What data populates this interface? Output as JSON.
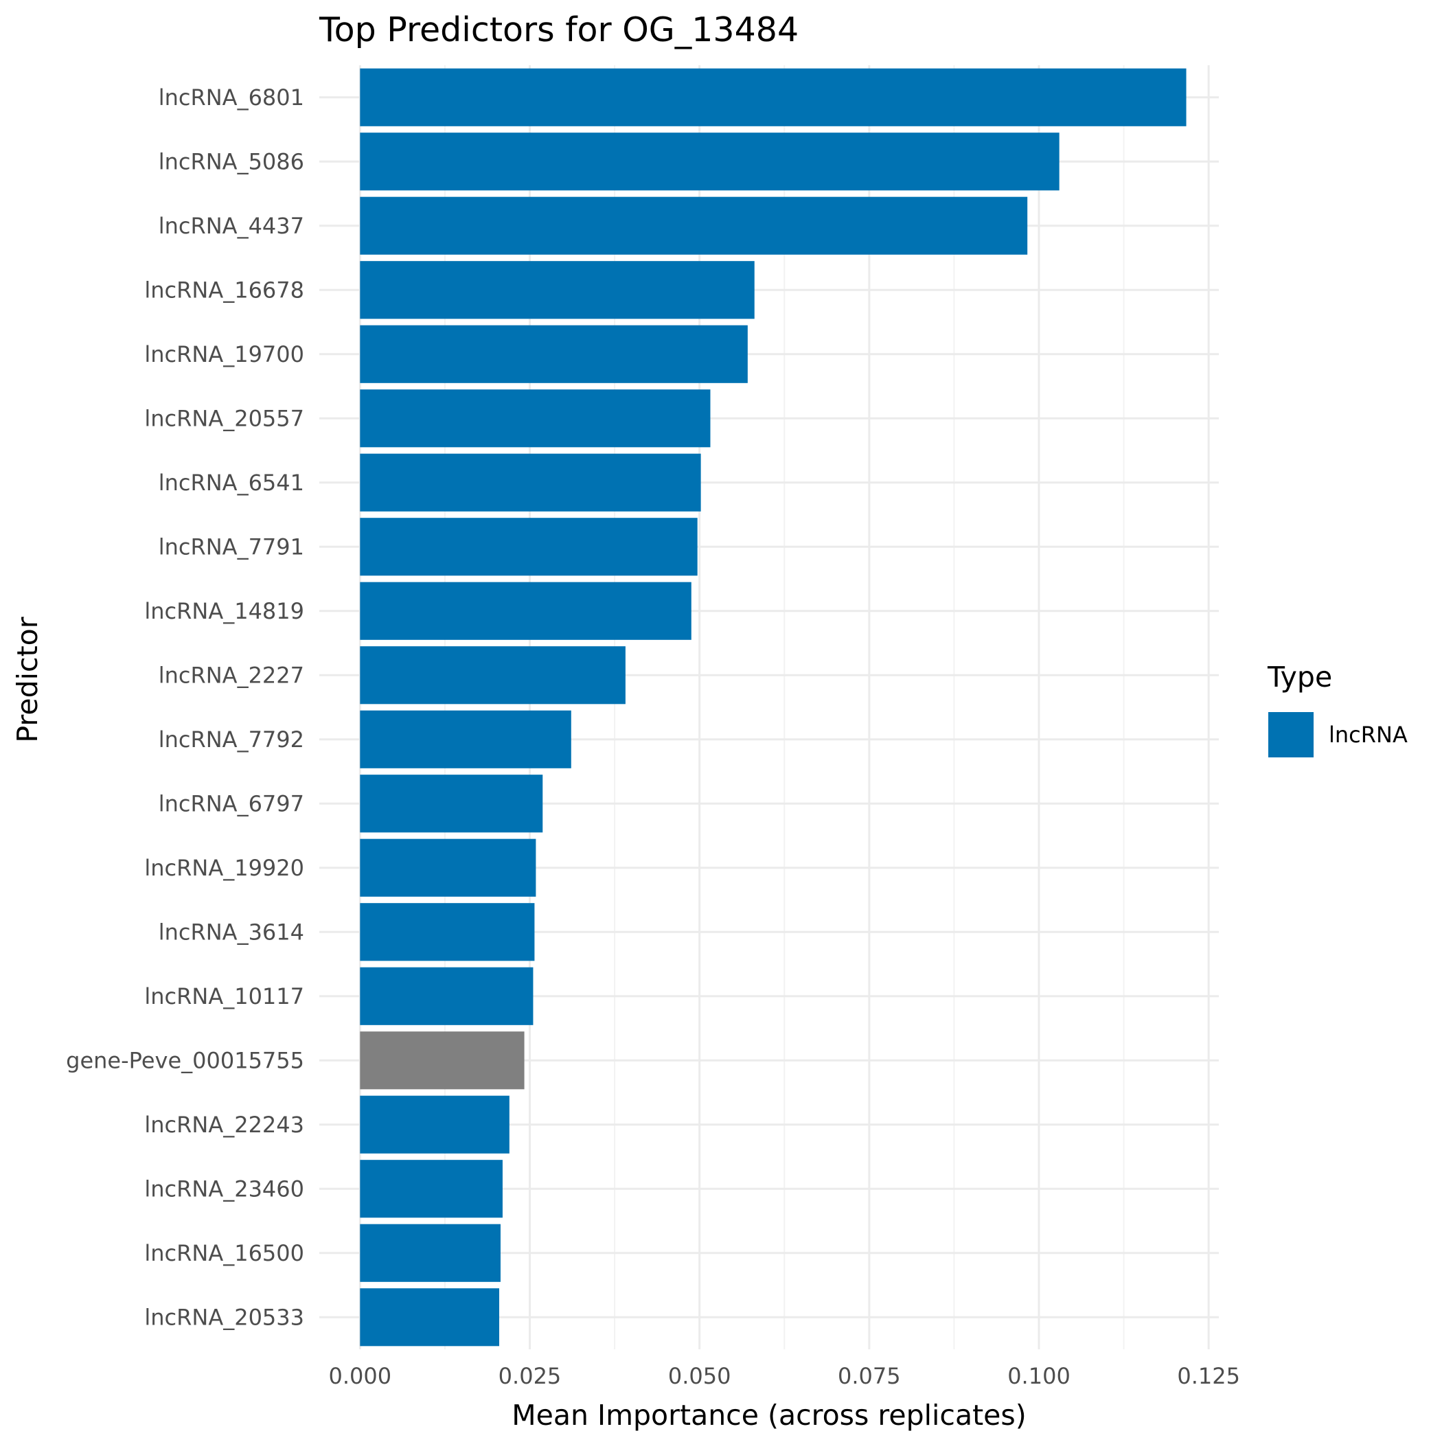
{
  "colors": {
    "lncRNA": "#0072B2",
    "gene": "#808080",
    "grid_major": "#ebebeb",
    "grid_minor": "#f2f2f2"
  },
  "chart_data": {
    "type": "bar",
    "orientation": "horizontal",
    "title": "Top Predictors for OG_13484",
    "xlabel": "Mean Importance (across replicates)",
    "ylabel": "Predictor",
    "xlim": [
      -0.006,
      0.1265
    ],
    "x_ticks": [
      0,
      0.025,
      0.05,
      0.075,
      0.1,
      0.125
    ],
    "x_tick_labels": [
      "0.000",
      "0.025",
      "0.050",
      "0.075",
      "0.100",
      "0.125"
    ],
    "grid": true,
    "legend": {
      "title": "Type",
      "position": "right",
      "entries": [
        {
          "label": "lncRNA",
          "color_key": "lncRNA"
        }
      ]
    },
    "categories": [
      "lncRNA_6801",
      "lncRNA_5086",
      "lncRNA_4437",
      "lncRNA_16678",
      "lncRNA_19700",
      "lncRNA_20557",
      "lncRNA_6541",
      "lncRNA_7791",
      "lncRNA_14819",
      "lncRNA_2227",
      "lncRNA_7792",
      "lncRNA_6797",
      "lncRNA_19920",
      "lncRNA_3614",
      "lncRNA_10117",
      "gene-Peve_00015755",
      "lncRNA_22243",
      "lncRNA_23460",
      "lncRNA_16500",
      "lncRNA_20533"
    ],
    "values": [
      0.1217,
      0.103,
      0.0983,
      0.0581,
      0.0571,
      0.0516,
      0.0502,
      0.0497,
      0.0488,
      0.0391,
      0.0311,
      0.0269,
      0.0259,
      0.0257,
      0.0255,
      0.0242,
      0.022,
      0.021,
      0.0207,
      0.0205
    ],
    "types": [
      "lncRNA",
      "lncRNA",
      "lncRNA",
      "lncRNA",
      "lncRNA",
      "lncRNA",
      "lncRNA",
      "lncRNA",
      "lncRNA",
      "lncRNA",
      "lncRNA",
      "lncRNA",
      "lncRNA",
      "lncRNA",
      "lncRNA",
      "gene",
      "lncRNA",
      "lncRNA",
      "lncRNA",
      "lncRNA"
    ]
  }
}
